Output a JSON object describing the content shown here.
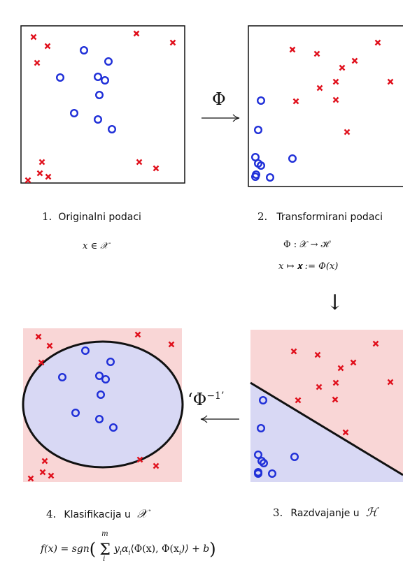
{
  "panels": [
    {
      "number": "1.",
      "caption": "Originalni podaci",
      "formula": "x ∈ 𝒳"
    },
    {
      "number": "2.",
      "caption": "Transformirani podaci",
      "formula_1": "Φ : 𝒳 → ℋ",
      "formula_2": "x ↦ 𝐱 := Φ(x)"
    },
    {
      "number": "3.",
      "caption": "Razdvajanje u",
      "space": "ℋ"
    },
    {
      "number": "4.",
      "caption": "Klasifikacija u",
      "space": "𝒳"
    }
  ],
  "arrows": {
    "forward_label": "Φ",
    "inverse_label": "‘Φ",
    "inverse_sup": "−1’",
    "down_arrow": "↓"
  },
  "decision_function": "f(x) = sgn( Σ_i^m y_i α_i ⟨Φ(x), Φ(x_i)⟩ + b )",
  "decision_function_parts": {
    "lhs": "f(x) = sgn",
    "sum": "Σ",
    "sum_upper": "m",
    "sum_lower": "i",
    "body": "y",
    "sub_i": "i",
    "alpha": "α",
    "inner": "⟨Φ(x), Φ(x",
    "tail": ")⟩ + b"
  },
  "colors": {
    "class_cross": "#e0101c",
    "class_circle": "#1f2fd8",
    "region_positive": "#f9d6d6",
    "region_negative": "#d8d8f4",
    "border": "#111111"
  }
}
